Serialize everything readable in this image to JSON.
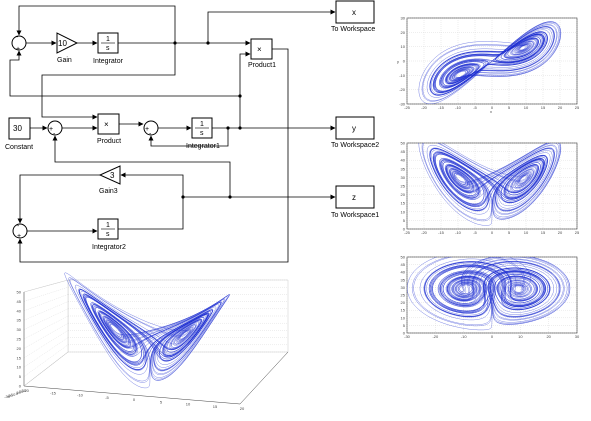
{
  "diagram": {
    "blocks": {
      "gain": {
        "value": "10",
        "label": "Gain"
      },
      "integrator": {
        "num": "1",
        "den": "s",
        "label": "Integrator"
      },
      "product1": {
        "symbol": "×",
        "label": "Product1"
      },
      "to_workspace": {
        "var": "x",
        "label": "To Workspace"
      },
      "constant": {
        "value": "30",
        "label": "Constant"
      },
      "product": {
        "symbol": "×",
        "label": "Product"
      },
      "integrator1": {
        "num": "1",
        "den": "s",
        "label": "Integrator1"
      },
      "to_workspace2": {
        "var": "y",
        "label": "To Workspace2"
      },
      "gain3": {
        "value": "3",
        "label": "Gain3"
      },
      "to_workspace1": {
        "var": "z",
        "label": "To Workspace1"
      },
      "integrator2": {
        "num": "1",
        "den": "s",
        "label": "Integrator2"
      }
    },
    "signs": {
      "sum1_top": "-",
      "sum1_bottom": "+",
      "sum2_left": "+",
      "sum2_bottom": "-",
      "sum3_left": "+",
      "sum3_bottom": "-",
      "sum4_top": "-",
      "sum4_bottom": "+"
    }
  },
  "plots": {
    "trajectory_color": "#1f2fd1",
    "xy_plot": {
      "yticks": [
        "30",
        "20",
        "10",
        "0",
        "-10",
        "-20",
        "-30"
      ],
      "xticks": [
        "-25",
        "-20",
        "-15",
        "-10",
        "-5",
        "0",
        "5",
        "10",
        "15",
        "20",
        "25"
      ],
      "ylabel": "y",
      "xlabel": "x"
    },
    "xz_plot": {
      "yticks": [
        "50",
        "45",
        "40",
        "35",
        "30",
        "25",
        "20",
        "15",
        "10",
        "5",
        "0"
      ],
      "xticks": [
        "-25",
        "-20",
        "-15",
        "-10",
        "-5",
        "0",
        "5",
        "10",
        "15",
        "20",
        "25"
      ]
    },
    "yz_plot": {
      "yticks": [
        "50",
        "45",
        "40",
        "35",
        "30",
        "25",
        "20",
        "15",
        "10",
        "5",
        "0"
      ],
      "xticks": [
        "-30",
        "-20",
        "-10",
        "0",
        "10",
        "20",
        "30"
      ]
    },
    "plot3d": {
      "zticks": [
        "50",
        "45",
        "40",
        "35",
        "30",
        "25",
        "20",
        "15",
        "10",
        "5",
        "0"
      ],
      "xticks": [
        "-20",
        "-15",
        "-10",
        "-5",
        "0",
        "5",
        "10",
        "15",
        "20"
      ],
      "yticks": [
        "-30",
        "-20",
        "-10",
        "0",
        "10",
        "20",
        "30"
      ]
    }
  }
}
